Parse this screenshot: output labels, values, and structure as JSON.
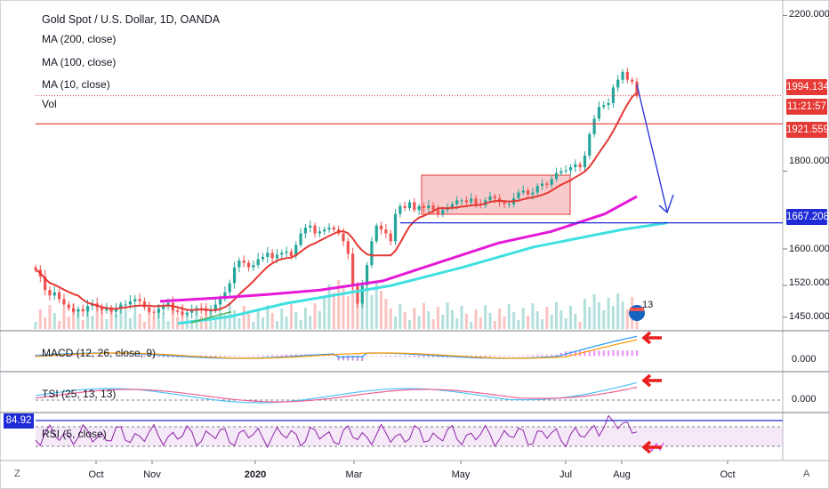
{
  "legend": {
    "title": "Gold Spot / U.S. Dollar, 1D, OANDA",
    "ma200": "MA (200, close)",
    "ma100": "MA (100, close)",
    "ma10": "MA (10, close)",
    "vol": "Vol",
    "macd": "MACD (12, 26, close, 9)",
    "tsi": "TSI (25, 13, 13)",
    "rsi": "RSI (5, close)"
  },
  "price_tags": {
    "last": "1994.134",
    "countdown": "11:21:57",
    "resistance": "1921.559",
    "target": "1667.208",
    "rsi_value": "84.92"
  },
  "badge": "13",
  "corner": {
    "left": "Z",
    "right": "A"
  },
  "colors": {
    "up": "#26a69a",
    "down": "#ef5350",
    "ma10": "#e53935",
    "ma100": "#e619d8",
    "ma200": "#3fe0e0",
    "projection": "#1e2bd6",
    "box": "#f7b3b5",
    "arrow": "#e91e1e",
    "rsi": "#8e24aa",
    "macd_line": "#2196f3",
    "macd_signal": "#ff9800",
    "tsi_line": "#4fc3f7",
    "tsi_signal": "#f06292"
  },
  "chart_data": {
    "type": "candlestick",
    "symbol": "Gold Spot / U.S. Dollar",
    "interval": "1D",
    "source": "OANDA",
    "price_axis_labels": [
      "2200.000",
      "1800.000",
      "1600.000",
      "1520.000",
      "1450.000"
    ],
    "price_axis_values": [
      2200,
      1800,
      1600,
      1520,
      1450
    ],
    "x_axis_labels": [
      "Oct",
      "Nov",
      "2020",
      "Mar",
      "May",
      "Jul",
      "Aug",
      "Oct"
    ],
    "indicator_axis_labels": {
      "macd": "0.000",
      "tsi": "0.000"
    },
    "levels": {
      "last": 1994.134,
      "resistance": 1921.559,
      "target": 1667.208
    },
    "close_series": [
      1555,
      1540,
      1510,
      1498,
      1505,
      1490,
      1478,
      1470,
      1462,
      1468,
      1463,
      1475,
      1480,
      1472,
      1465,
      1470,
      1462,
      1470,
      1478,
      1478,
      1485,
      1490,
      1485,
      1472,
      1462,
      1460,
      1468,
      1476,
      1482,
      1465,
      1462,
      1456,
      1460,
      1466,
      1470,
      1468,
      1463,
      1467,
      1478,
      1490,
      1505,
      1525,
      1560,
      1575,
      1570,
      1560,
      1565,
      1578,
      1583,
      1592,
      1580,
      1588,
      1592,
      1595,
      1585,
      1610,
      1640,
      1655,
      1660,
      1640,
      1645,
      1650,
      1655,
      1650,
      1640,
      1620,
      1590,
      1520,
      1480,
      1520,
      1565,
      1620,
      1660,
      1650,
      1640,
      1620,
      1690,
      1710,
      1705,
      1720,
      1700,
      1710,
      1705,
      1712,
      1700,
      1690,
      1700,
      1705,
      1715,
      1725,
      1725,
      1720,
      1730,
      1715,
      1712,
      1725,
      1735,
      1730,
      1720,
      1715,
      1715,
      1730,
      1745,
      1750,
      1740,
      1745,
      1762,
      1768,
      1765,
      1780,
      1795,
      1800,
      1802,
      1810,
      1818,
      1810,
      1840,
      1895,
      1935,
      1965,
      1970,
      1975,
      2015,
      2035,
      2055,
      2035,
      2030,
      1994
    ],
    "ma10_label": "MA (10, close)",
    "ma100_label": "MA (100, close)",
    "ma200_label": "MA (200, close)",
    "rsi_last": 84.92
  }
}
